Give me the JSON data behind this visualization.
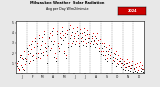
{
  "title": "Milwaukee Weather  Solar Radiation",
  "subtitle": "Avg per Day W/m2/minute",
  "bg_color": "#e8e8e8",
  "plot_bg": "#ffffff",
  "xlim": [
    0,
    366
  ],
  "ylim": [
    0,
    5.2
  ],
  "yticks": [
    1,
    2,
    3,
    4,
    5
  ],
  "ytick_labels": [
    "1",
    "2",
    "3",
    "4",
    "5"
  ],
  "month_starts": [
    1,
    32,
    60,
    91,
    121,
    152,
    182,
    213,
    244,
    274,
    305,
    335
  ],
  "month_labels": [
    "J",
    "F",
    "M",
    "A",
    "M",
    "J",
    "J",
    "A",
    "S",
    "O",
    "N",
    "D"
  ],
  "legend_label": "2024",
  "legend_color": "#cc0000",
  "dot_color_current": "#dd0000",
  "dot_color_prev": "#111111",
  "data_red": [
    [
      3,
      1.0
    ],
    [
      6,
      0.5
    ],
    [
      9,
      0.3
    ],
    [
      12,
      1.8
    ],
    [
      15,
      0.8
    ],
    [
      18,
      1.5
    ],
    [
      21,
      0.4
    ],
    [
      24,
      2.2
    ],
    [
      27,
      0.9
    ],
    [
      30,
      1.4
    ],
    [
      33,
      1.9
    ],
    [
      36,
      2.8
    ],
    [
      39,
      1.2
    ],
    [
      42,
      2.4
    ],
    [
      45,
      3.2
    ],
    [
      48,
      1.8
    ],
    [
      51,
      2.6
    ],
    [
      54,
      3.5
    ],
    [
      57,
      1.5
    ],
    [
      60,
      3.0
    ],
    [
      63,
      2.0
    ],
    [
      66,
      3.8
    ],
    [
      69,
      1.5
    ],
    [
      72,
      2.8
    ],
    [
      75,
      3.6
    ],
    [
      78,
      2.1
    ],
    [
      81,
      4.2
    ],
    [
      84,
      3.0
    ],
    [
      87,
      2.5
    ],
    [
      90,
      1.8
    ],
    [
      93,
      3.5
    ],
    [
      96,
      4.0
    ],
    [
      99,
      2.5
    ],
    [
      102,
      3.8
    ],
    [
      105,
      4.5
    ],
    [
      108,
      3.2
    ],
    [
      111,
      2.0
    ],
    [
      114,
      1.5
    ],
    [
      117,
      4.2
    ],
    [
      120,
      3.0
    ],
    [
      123,
      2.5
    ],
    [
      126,
      4.0
    ],
    [
      129,
      3.5
    ],
    [
      132,
      4.6
    ],
    [
      135,
      3.8
    ],
    [
      138,
      2.2
    ],
    [
      141,
      4.0
    ],
    [
      144,
      1.8
    ],
    [
      147,
      4.3
    ],
    [
      150,
      3.0
    ],
    [
      153,
      4.8
    ],
    [
      156,
      3.8
    ],
    [
      159,
      3.0
    ],
    [
      162,
      4.5
    ],
    [
      165,
      3.5
    ],
    [
      168,
      4.0
    ],
    [
      171,
      3.2
    ],
    [
      174,
      4.6
    ],
    [
      177,
      3.8
    ],
    [
      180,
      3.0
    ],
    [
      183,
      4.4
    ],
    [
      186,
      3.5
    ],
    [
      189,
      4.0
    ],
    [
      192,
      3.2
    ],
    [
      195,
      4.5
    ],
    [
      198,
      3.8
    ],
    [
      201,
      3.0
    ],
    [
      204,
      4.3
    ],
    [
      207,
      3.5
    ],
    [
      210,
      3.9
    ],
    [
      213,
      3.0
    ],
    [
      216,
      3.5
    ],
    [
      219,
      4.0
    ],
    [
      222,
      3.2
    ],
    [
      225,
      3.7
    ],
    [
      228,
      3.0
    ],
    [
      231,
      4.0
    ],
    [
      234,
      3.3
    ],
    [
      237,
      2.5
    ],
    [
      240,
      3.4
    ],
    [
      243,
      2.2
    ],
    [
      246,
      3.0
    ],
    [
      249,
      2.2
    ],
    [
      252,
      3.0
    ],
    [
      255,
      1.8
    ],
    [
      258,
      2.6
    ],
    [
      261,
      1.5
    ],
    [
      264,
      2.2
    ],
    [
      267,
      2.8
    ],
    [
      270,
      1.8
    ],
    [
      273,
      2.5
    ],
    [
      276,
      1.3
    ],
    [
      279,
      2.0
    ],
    [
      282,
      1.5
    ],
    [
      285,
      2.2
    ],
    [
      288,
      1.0
    ],
    [
      291,
      1.8
    ],
    [
      294,
      1.2
    ],
    [
      297,
      1.5
    ],
    [
      300,
      1.0
    ],
    [
      303,
      1.4
    ],
    [
      306,
      0.8
    ],
    [
      309,
      1.2
    ],
    [
      312,
      0.6
    ],
    [
      315,
      1.0
    ],
    [
      318,
      1.4
    ],
    [
      321,
      0.7
    ],
    [
      324,
      1.1
    ],
    [
      327,
      0.5
    ],
    [
      330,
      0.8
    ],
    [
      333,
      1.2
    ],
    [
      336,
      0.4
    ],
    [
      339,
      0.9
    ],
    [
      342,
      0.6
    ],
    [
      345,
      1.0
    ],
    [
      348,
      0.3
    ],
    [
      351,
      0.7
    ],
    [
      354,
      1.1
    ],
    [
      357,
      0.5
    ],
    [
      360,
      0.8
    ],
    [
      363,
      0.4
    ]
  ],
  "data_black": [
    [
      2,
      0.7
    ],
    [
      5,
      1.2
    ],
    [
      8,
      0.4
    ],
    [
      11,
      1.6
    ],
    [
      14,
      1.8
    ],
    [
      17,
      0.6
    ],
    [
      20,
      1.4
    ],
    [
      23,
      0.3
    ],
    [
      26,
      1.5
    ],
    [
      29,
      1.2
    ],
    [
      32,
      2.5
    ],
    [
      35,
      2.2
    ],
    [
      38,
      1.0
    ],
    [
      41,
      2.0
    ],
    [
      44,
      2.9
    ],
    [
      47,
      1.7
    ],
    [
      50,
      1.3
    ],
    [
      53,
      3.2
    ],
    [
      56,
      2.0
    ],
    [
      59,
      2.7
    ],
    [
      62,
      1.6
    ],
    [
      65,
      3.5
    ],
    [
      68,
      2.4
    ],
    [
      71,
      2.0
    ],
    [
      74,
      3.2
    ],
    [
      77,
      1.8
    ],
    [
      80,
      3.9
    ],
    [
      83,
      2.6
    ],
    [
      86,
      2.2
    ],
    [
      89,
      1.0
    ],
    [
      92,
      2.7
    ],
    [
      95,
      3.6
    ],
    [
      98,
      2.3
    ],
    [
      101,
      3.2
    ],
    [
      104,
      4.2
    ],
    [
      107,
      2.9
    ],
    [
      110,
      1.6
    ],
    [
      113,
      1.2
    ],
    [
      116,
      3.9
    ],
    [
      119,
      2.7
    ],
    [
      122,
      2.2
    ],
    [
      125,
      3.6
    ],
    [
      128,
      2.9
    ],
    [
      131,
      4.2
    ],
    [
      134,
      3.3
    ],
    [
      137,
      2.0
    ],
    [
      140,
      3.6
    ],
    [
      143,
      1.5
    ],
    [
      146,
      3.9
    ],
    [
      149,
      2.6
    ],
    [
      152,
      4.4
    ],
    [
      155,
      3.5
    ],
    [
      158,
      2.7
    ],
    [
      161,
      4.1
    ],
    [
      164,
      3.2
    ],
    [
      167,
      3.7
    ],
    [
      170,
      2.9
    ],
    [
      173,
      4.2
    ],
    [
      176,
      3.5
    ],
    [
      179,
      2.7
    ],
    [
      182,
      4.0
    ],
    [
      185,
      3.2
    ],
    [
      188,
      3.6
    ],
    [
      191,
      2.8
    ],
    [
      194,
      4.1
    ],
    [
      197,
      3.4
    ],
    [
      200,
      2.7
    ],
    [
      203,
      3.9
    ],
    [
      206,
      3.1
    ],
    [
      209,
      3.5
    ],
    [
      212,
      2.7
    ],
    [
      215,
      3.2
    ],
    [
      218,
      3.7
    ],
    [
      221,
      2.9
    ],
    [
      224,
      3.3
    ],
    [
      227,
      2.6
    ],
    [
      230,
      3.5
    ],
    [
      233,
      2.9
    ],
    [
      236,
      2.2
    ],
    [
      239,
      3.0
    ],
    [
      242,
      1.9
    ],
    [
      245,
      2.5
    ],
    [
      248,
      1.8
    ],
    [
      251,
      2.7
    ],
    [
      254,
      1.4
    ],
    [
      257,
      2.2
    ],
    [
      260,
      1.2
    ],
    [
      263,
      1.9
    ],
    [
      266,
      2.4
    ],
    [
      269,
      1.5
    ],
    [
      272,
      2.1
    ],
    [
      275,
      1.0
    ],
    [
      278,
      1.6
    ],
    [
      281,
      1.2
    ],
    [
      284,
      1.9
    ],
    [
      287,
      0.7
    ],
    [
      290,
      1.4
    ],
    [
      293,
      0.9
    ],
    [
      296,
      1.2
    ],
    [
      299,
      0.6
    ],
    [
      302,
      1.0
    ],
    [
      305,
      0.4
    ],
    [
      308,
      0.9
    ],
    [
      311,
      0.3
    ],
    [
      314,
      0.6
    ],
    [
      317,
      1.0
    ],
    [
      320,
      0.3
    ],
    [
      323,
      0.7
    ],
    [
      326,
      0.2
    ],
    [
      329,
      0.5
    ],
    [
      332,
      0.8
    ],
    [
      335,
      0.1
    ],
    [
      338,
      0.5
    ],
    [
      341,
      0.2
    ],
    [
      344,
      0.6
    ],
    [
      347,
      0.1
    ],
    [
      350,
      0.3
    ],
    [
      353,
      0.7
    ],
    [
      356,
      0.2
    ],
    [
      359,
      0.4
    ],
    [
      362,
      0.1
    ]
  ]
}
